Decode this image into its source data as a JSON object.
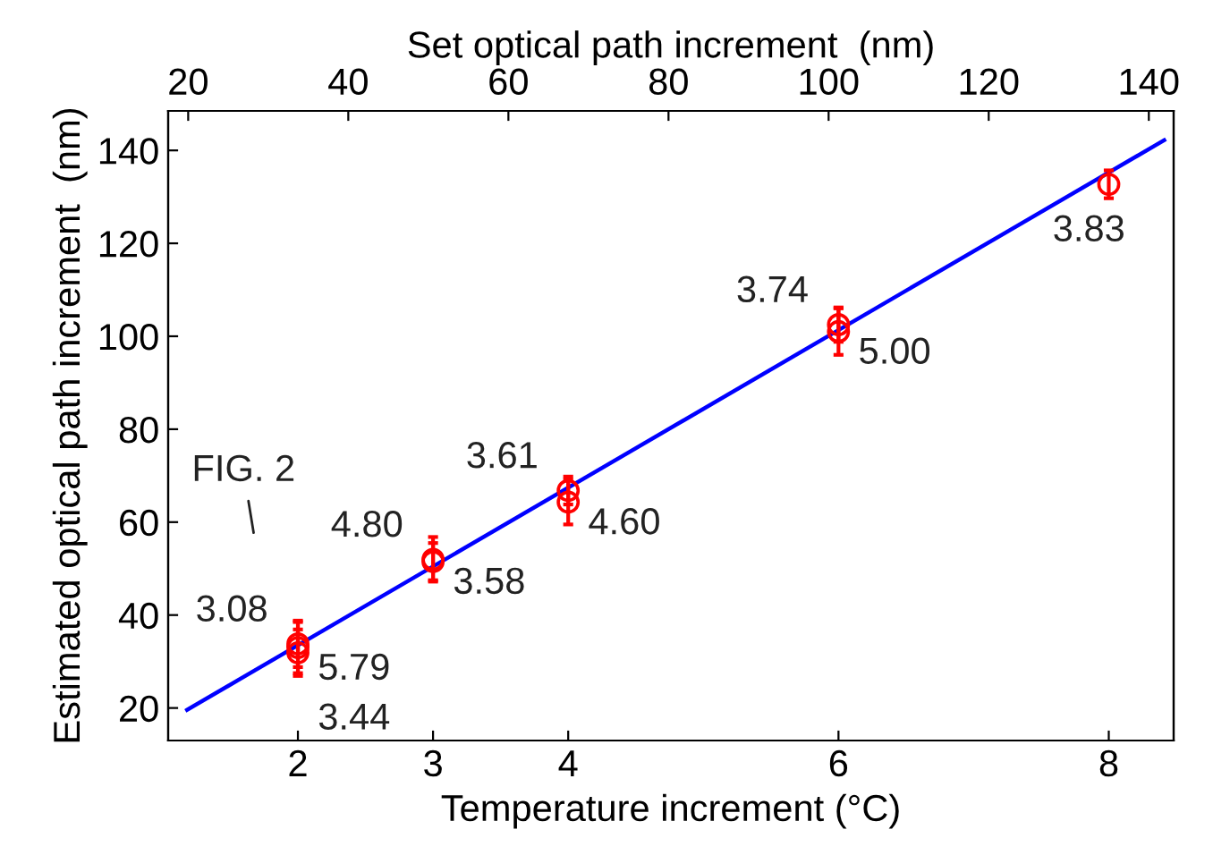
{
  "chart_data": {
    "type": "scatter",
    "xlabel": "Temperature increment (°C)",
    "x2label": "Set optical path increment  (nm)",
    "ylabel": "Estimated optical path increment  (nm)",
    "xlim": [
      1.04,
      8.48
    ],
    "ylim": [
      13,
      148.5
    ],
    "xticks": [
      2,
      3,
      4,
      6,
      8
    ],
    "x2lim": [
      17.5,
      143.1
    ],
    "x2ticks": [
      20,
      40,
      60,
      80,
      100,
      120,
      140
    ],
    "yticks": [
      20,
      40,
      60,
      80,
      100,
      120,
      140
    ],
    "series": [
      {
        "color": "#ff0000",
        "marker": "circle",
        "x": [
          2,
          2,
          2,
          3,
          3,
          4,
          4,
          6,
          6,
          8
        ],
        "values": [
          33.8,
          33.0,
          31.9,
          52.0,
          51.5,
          66.8,
          64.3,
          102.5,
          101.0,
          132.7
        ],
        "errors": [
          5,
          5.5,
          5,
          4.8,
          4,
          3,
          4.8,
          3.7,
          5,
          3
        ]
      },
      {
        "type": "line",
        "color": "#0000ff",
        "x": [
          1.18,
          8.41
        ],
        "values": [
          19.6,
          142.2
        ]
      }
    ],
    "annotations": [
      "FIG. 2",
      {
        "text": "3.08",
        "x": 2,
        "y": 33.8
      },
      {
        "text": "5.79",
        "x": 2,
        "y": 33.0
      },
      {
        "text": "3.44",
        "x": 2,
        "y": 31.9
      },
      {
        "text": "4.80",
        "x": 3,
        "y": 52.0
      },
      {
        "text": "3.58",
        "x": 3,
        "y": 51.5
      },
      {
        "text": "3.61",
        "x": 4,
        "y": 66.8
      },
      {
        "text": "4.60",
        "x": 4,
        "y": 64.3
      },
      {
        "text": "3.74",
        "x": 6,
        "y": 102.5
      },
      {
        "text": "5.00",
        "x": 6,
        "y": 101.0
      },
      {
        "text": "3.83",
        "x": 8,
        "y": 132.7
      }
    ]
  }
}
